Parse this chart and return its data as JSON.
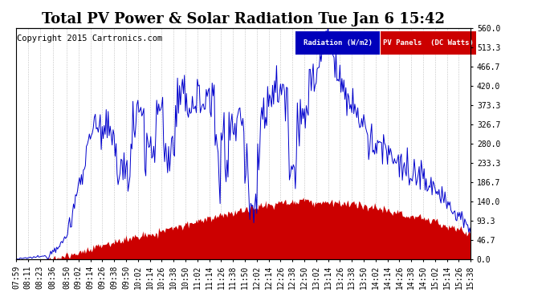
{
  "title": "Total PV Power & Solar Radiation Tue Jan 6 15:42",
  "copyright": "Copyright 2015 Cartronics.com",
  "legend_labels": [
    "Radiation (W/m2)",
    "PV Panels  (DC Watts)"
  ],
  "legend_bg_colors": [
    "#0000bb",
    "#cc0000"
  ],
  "y_right_ticks": [
    0.0,
    46.7,
    93.3,
    140.0,
    186.7,
    233.3,
    280.0,
    326.7,
    373.3,
    420.0,
    466.7,
    513.3,
    560.0
  ],
  "x_tick_labels": [
    "07:59",
    "08:11",
    "08:23",
    "08:36",
    "08:50",
    "09:02",
    "09:14",
    "09:26",
    "09:38",
    "09:50",
    "10:02",
    "10:14",
    "10:26",
    "10:38",
    "10:50",
    "11:02",
    "11:14",
    "11:26",
    "11:38",
    "11:50",
    "12:02",
    "12:14",
    "12:26",
    "12:38",
    "12:50",
    "13:02",
    "13:14",
    "13:26",
    "13:38",
    "13:50",
    "14:02",
    "14:14",
    "14:26",
    "14:38",
    "14:50",
    "15:02",
    "15:14",
    "15:26",
    "15:38"
  ],
  "radiation_color": "#0000cc",
  "pv_color": "#cc0000",
  "bg_color": "#ffffff",
  "grid_color": "#aaaaaa",
  "title_fontsize": 13,
  "copyright_fontsize": 7.5,
  "tick_fontsize": 7,
  "ymax": 560.0,
  "ymin": 0.0
}
